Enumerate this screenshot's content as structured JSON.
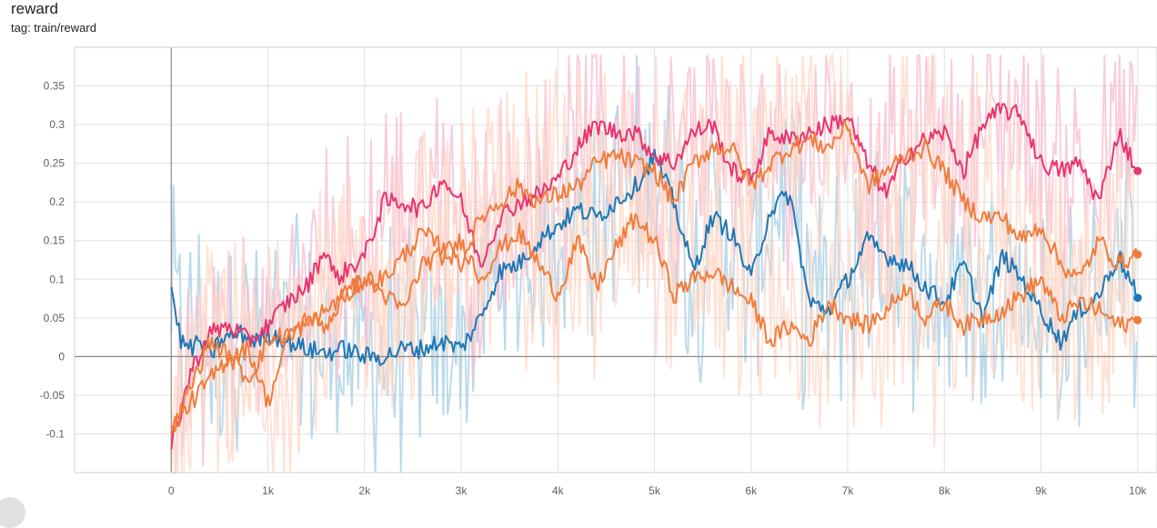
{
  "header": {
    "title": "reward",
    "tag": "tag: train/reward"
  },
  "chart_data": {
    "type": "line",
    "title": "reward",
    "xlabel": "",
    "ylabel": "",
    "xlim": [
      -1000,
      10200
    ],
    "ylim": [
      -0.15,
      0.4
    ],
    "x_ticks": [
      {
        "v": 0,
        "label": "0"
      },
      {
        "v": 1000,
        "label": "1k"
      },
      {
        "v": 2000,
        "label": "2k"
      },
      {
        "v": 3000,
        "label": "3k"
      },
      {
        "v": 4000,
        "label": "4k"
      },
      {
        "v": 5000,
        "label": "5k"
      },
      {
        "v": 6000,
        "label": "6k"
      },
      {
        "v": 7000,
        "label": "7k"
      },
      {
        "v": 8000,
        "label": "8k"
      },
      {
        "v": 9000,
        "label": "9k"
      },
      {
        "v": 10000,
        "label": "10k"
      }
    ],
    "y_ticks": [
      {
        "v": -0.1,
        "label": "-0.1"
      },
      {
        "v": -0.05,
        "label": "-0.05"
      },
      {
        "v": 0,
        "label": "0"
      },
      {
        "v": 0.05,
        "label": "0.05"
      },
      {
        "v": 0.1,
        "label": "0.1"
      },
      {
        "v": 0.15,
        "label": "0.15"
      },
      {
        "v": 0.2,
        "label": "0.2"
      },
      {
        "v": 0.25,
        "label": "0.25"
      },
      {
        "v": 0.3,
        "label": "0.3"
      },
      {
        "v": 0.35,
        "label": "0.35"
      }
    ],
    "grid": true,
    "legend": "none",
    "series": [
      {
        "color": "#1f77b4",
        "raw_color": "#a6cee3",
        "points": [
          [
            0,
            0.09
          ],
          [
            100,
            0.02
          ],
          [
            200,
            0.01
          ],
          [
            300,
            0.02
          ],
          [
            400,
            0.0
          ],
          [
            500,
            0.02
          ],
          [
            700,
            0.03
          ],
          [
            900,
            0.02
          ],
          [
            1000,
            0.03
          ],
          [
            1200,
            0.02
          ],
          [
            1400,
            0.01
          ],
          [
            1600,
            0.005
          ],
          [
            1800,
            0.01
          ],
          [
            2000,
            0.0
          ],
          [
            2200,
            0.0
          ],
          [
            2400,
            0.01
          ],
          [
            2600,
            0.01
          ],
          [
            2800,
            0.02
          ],
          [
            3000,
            0.01
          ],
          [
            3200,
            0.05
          ],
          [
            3400,
            0.11
          ],
          [
            3600,
            0.12
          ],
          [
            3800,
            0.15
          ],
          [
            4000,
            0.17
          ],
          [
            4200,
            0.19
          ],
          [
            4400,
            0.18
          ],
          [
            4600,
            0.2
          ],
          [
            4800,
            0.22
          ],
          [
            5000,
            0.26
          ],
          [
            5200,
            0.2
          ],
          [
            5400,
            0.11
          ],
          [
            5600,
            0.18
          ],
          [
            5800,
            0.16
          ],
          [
            6000,
            0.1
          ],
          [
            6200,
            0.19
          ],
          [
            6400,
            0.21
          ],
          [
            6600,
            0.07
          ],
          [
            6800,
            0.06
          ],
          [
            7000,
            0.1
          ],
          [
            7200,
            0.15
          ],
          [
            7400,
            0.13
          ],
          [
            7600,
            0.12
          ],
          [
            7800,
            0.09
          ],
          [
            8000,
            0.07
          ],
          [
            8200,
            0.12
          ],
          [
            8400,
            0.05
          ],
          [
            8600,
            0.13
          ],
          [
            8800,
            0.1
          ],
          [
            9000,
            0.06
          ],
          [
            9200,
            0.02
          ],
          [
            9400,
            0.06
          ],
          [
            9600,
            0.08
          ],
          [
            9800,
            0.13
          ],
          [
            10000,
            0.076
          ]
        ]
      },
      {
        "color": "#e8356e",
        "raw_color": "#f8bbd0",
        "points": [
          [
            0,
            -0.12
          ],
          [
            200,
            -0.02
          ],
          [
            400,
            0.03
          ],
          [
            600,
            0.04
          ],
          [
            800,
            0.02
          ],
          [
            1000,
            0.04
          ],
          [
            1200,
            0.07
          ],
          [
            1400,
            0.09
          ],
          [
            1600,
            0.14
          ],
          [
            1700,
            0.1
          ],
          [
            1800,
            0.11
          ],
          [
            2000,
            0.13
          ],
          [
            2200,
            0.2
          ],
          [
            2400,
            0.2
          ],
          [
            2600,
            0.19
          ],
          [
            2800,
            0.23
          ],
          [
            3000,
            0.2
          ],
          [
            3200,
            0.12
          ],
          [
            3400,
            0.18
          ],
          [
            3600,
            0.2
          ],
          [
            3800,
            0.21
          ],
          [
            4000,
            0.23
          ],
          [
            4200,
            0.27
          ],
          [
            4400,
            0.3
          ],
          [
            4600,
            0.29
          ],
          [
            4800,
            0.29
          ],
          [
            5000,
            0.26
          ],
          [
            5200,
            0.25
          ],
          [
            5400,
            0.29
          ],
          [
            5600,
            0.3
          ],
          [
            5800,
            0.24
          ],
          [
            6000,
            0.23
          ],
          [
            6200,
            0.29
          ],
          [
            6400,
            0.28
          ],
          [
            6600,
            0.29
          ],
          [
            6800,
            0.3
          ],
          [
            7000,
            0.31
          ],
          [
            7200,
            0.25
          ],
          [
            7400,
            0.21
          ],
          [
            7600,
            0.26
          ],
          [
            7800,
            0.28
          ],
          [
            8000,
            0.29
          ],
          [
            8200,
            0.24
          ],
          [
            8400,
            0.3
          ],
          [
            8600,
            0.32
          ],
          [
            8800,
            0.31
          ],
          [
            9000,
            0.25
          ],
          [
            9200,
            0.24
          ],
          [
            9400,
            0.25
          ],
          [
            9600,
            0.2
          ],
          [
            9800,
            0.29
          ],
          [
            10000,
            0.24
          ]
        ]
      },
      {
        "color": "#f07c3c",
        "raw_color": "#ffd8c8",
        "points": [
          [
            0,
            -0.1
          ],
          [
            200,
            -0.04
          ],
          [
            400,
            0.02
          ],
          [
            600,
            0.0
          ],
          [
            800,
            -0.03
          ],
          [
            1000,
            0.02
          ],
          [
            1200,
            0.03
          ],
          [
            1400,
            0.04
          ],
          [
            1600,
            0.06
          ],
          [
            1800,
            0.08
          ],
          [
            2000,
            0.1
          ],
          [
            2200,
            0.1
          ],
          [
            2400,
            0.13
          ],
          [
            2600,
            0.16
          ],
          [
            2800,
            0.14
          ],
          [
            3000,
            0.12
          ],
          [
            3200,
            0.18
          ],
          [
            3400,
            0.2
          ],
          [
            3600,
            0.22
          ],
          [
            3800,
            0.2
          ],
          [
            4000,
            0.21
          ],
          [
            4200,
            0.22
          ],
          [
            4400,
            0.25
          ],
          [
            4600,
            0.26
          ],
          [
            4800,
            0.25
          ],
          [
            5000,
            0.24
          ],
          [
            5200,
            0.2
          ],
          [
            5400,
            0.25
          ],
          [
            5600,
            0.27
          ],
          [
            5800,
            0.27
          ],
          [
            6000,
            0.22
          ],
          [
            6200,
            0.25
          ],
          [
            6400,
            0.27
          ],
          [
            6600,
            0.28
          ],
          [
            6800,
            0.27
          ],
          [
            7000,
            0.3
          ],
          [
            7200,
            0.22
          ],
          [
            7400,
            0.24
          ],
          [
            7600,
            0.26
          ],
          [
            7800,
            0.27
          ],
          [
            8000,
            0.24
          ],
          [
            8200,
            0.2
          ],
          [
            8400,
            0.18
          ],
          [
            8600,
            0.18
          ],
          [
            8800,
            0.15
          ],
          [
            9000,
            0.17
          ],
          [
            9200,
            0.12
          ],
          [
            9400,
            0.1
          ],
          [
            9600,
            0.15
          ],
          [
            9800,
            0.12
          ],
          [
            10000,
            0.132
          ]
        ]
      },
      {
        "color": "#f07c3c",
        "raw_color": "#ffd8c8",
        "points": [
          [
            0,
            -0.09
          ],
          [
            200,
            -0.06
          ],
          [
            400,
            -0.03
          ],
          [
            600,
            0.0
          ],
          [
            800,
            0.01
          ],
          [
            1000,
            -0.06
          ],
          [
            1200,
            0.02
          ],
          [
            1400,
            0.05
          ],
          [
            1600,
            0.04
          ],
          [
            1800,
            0.08
          ],
          [
            2000,
            0.1
          ],
          [
            2200,
            0.08
          ],
          [
            2400,
            0.06
          ],
          [
            2600,
            0.12
          ],
          [
            2800,
            0.13
          ],
          [
            3000,
            0.15
          ],
          [
            3200,
            0.1
          ],
          [
            3400,
            0.14
          ],
          [
            3600,
            0.16
          ],
          [
            3800,
            0.12
          ],
          [
            4000,
            0.08
          ],
          [
            4200,
            0.15
          ],
          [
            4400,
            0.09
          ],
          [
            4600,
            0.14
          ],
          [
            4800,
            0.18
          ],
          [
            5000,
            0.15
          ],
          [
            5200,
            0.08
          ],
          [
            5400,
            0.1
          ],
          [
            5600,
            0.11
          ],
          [
            5800,
            0.09
          ],
          [
            6000,
            0.07
          ],
          [
            6200,
            0.02
          ],
          [
            6400,
            0.04
          ],
          [
            6600,
            0.02
          ],
          [
            6800,
            0.07
          ],
          [
            7000,
            0.05
          ],
          [
            7200,
            0.04
          ],
          [
            7400,
            0.06
          ],
          [
            7600,
            0.09
          ],
          [
            7800,
            0.05
          ],
          [
            8000,
            0.07
          ],
          [
            8200,
            0.04
          ],
          [
            8400,
            0.05
          ],
          [
            8600,
            0.06
          ],
          [
            8800,
            0.08
          ],
          [
            9000,
            0.1
          ],
          [
            9200,
            0.05
          ],
          [
            9400,
            0.07
          ],
          [
            9600,
            0.06
          ],
          [
            9800,
            0.04
          ],
          [
            10000,
            0.047
          ]
        ]
      }
    ]
  }
}
